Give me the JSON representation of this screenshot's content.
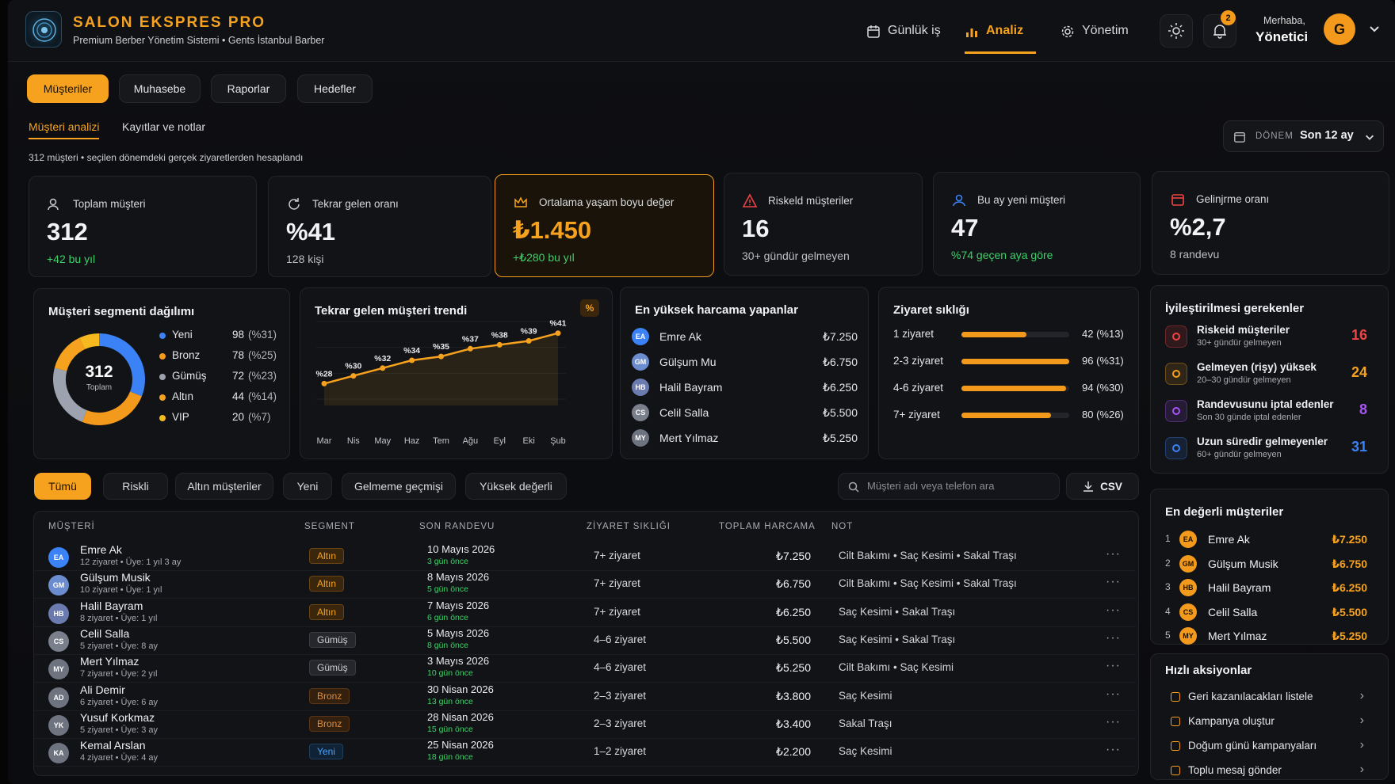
{
  "app": {
    "brand": "SALON EKSPRES PRO",
    "subtitle": "Premium Berber Yönetim Sistemi • Gents İstanbul Barber",
    "nav": [
      "Günlük iş",
      "Analiz",
      "Yönetim"
    ],
    "notifications": "2",
    "greeting": "Merhaba,",
    "user": "Yönetici",
    "avatar": "G"
  },
  "tabs": [
    "Müşteriler",
    "Muhasebe",
    "Raporlar",
    "Hedefler"
  ],
  "subtabs": [
    "Müşteri analizi",
    "Kayıtlar ve notlar"
  ],
  "period": {
    "label": "DÖNEM",
    "value": "Son 12 ay"
  },
  "info": "312 müşteri • seçilen dönemdeki gerçek ziyaretlerden hesaplandı",
  "kpis": [
    {
      "label": "Toplam müşteri",
      "value": "312",
      "note": "+42 bu yıl"
    },
    {
      "label": "Tekrar gelen oranı",
      "value": "%41",
      "note": "128 kişi"
    },
    {
      "label": "Ortalama yaşam boyu değer",
      "value": "₺1.450",
      "note": "+₺280 bu yıl"
    },
    {
      "label": "Riskeld müşteriler",
      "value": "16",
      "note": "30+ gündür gelmeyen"
    },
    {
      "label": "Bu ay yeni müşteri",
      "value": "47",
      "note": "%74 geçen aya göre"
    },
    {
      "label": "Gelinjrme oranı",
      "value": "%2,7",
      "note": "8 randevu"
    }
  ],
  "segment": {
    "title": "Müşteri segmenti dağılımı",
    "center_value": "312",
    "center_label": "Toplam",
    "items": [
      {
        "name": "Yeni",
        "count": "98",
        "pct": "(%31)",
        "color": "#3b82f6",
        "share": 31
      },
      {
        "name": "Bronz",
        "count": "78",
        "pct": "(%25)",
        "color": "#f39a1d",
        "share": 25
      },
      {
        "name": "Gümüş",
        "count": "72",
        "pct": "(%23)",
        "color": "#9ca3af",
        "share": 23
      },
      {
        "name": "Altın",
        "count": "44",
        "pct": "(%14)",
        "color": "#f6a21e",
        "share": 14
      },
      {
        "name": "VIP",
        "count": "20",
        "pct": "(%7)",
        "color": "#f6b91e",
        "share": 7
      }
    ]
  },
  "chart_data": {
    "type": "line",
    "title": "Tekrar gelen müşteri trendi",
    "unit_badge": "%",
    "categories": [
      "Mar",
      "Nis",
      "May",
      "Haz",
      "Tem",
      "Ağu",
      "Eyl",
      "Eki",
      "Şub"
    ],
    "values": [
      28,
      30,
      32,
      34,
      35,
      37,
      38,
      39,
      41
    ],
    "labels": [
      "%28",
      "%30",
      "%32",
      "%34",
      "%35",
      "%37",
      "%38",
      "%39",
      "%41"
    ],
    "ylim": [
      24,
      44
    ]
  },
  "top_spenders": {
    "title": "En yüksek harcama yapanlar",
    "items": [
      {
        "initials": "EA",
        "name": "Emre Ak",
        "amount": "₺7.250"
      },
      {
        "initials": "GM",
        "name": "Gülşum Mu",
        "amount": "₺6.750"
      },
      {
        "initials": "HB",
        "name": "Halil Bayram",
        "amount": "₺6.250"
      },
      {
        "initials": "CS",
        "name": "Celil Salla",
        "amount": "₺5.500"
      },
      {
        "initials": "MY",
        "name": "Mert Yılmaz",
        "amount": "₺5.250"
      }
    ]
  },
  "frequency": {
    "title": "Ziyaret sıklığı",
    "items": [
      {
        "label": "1 ziyaret",
        "value": "42 (%13)",
        "level": 0.6
      },
      {
        "label": "2-3 ziyaret",
        "value": "96 (%31)",
        "level": 1.0
      },
      {
        "label": "4-6 ziyaret",
        "value": "94 (%30)",
        "level": 0.97
      },
      {
        "label": "7+ ziyaret",
        "value": "80 (%26)",
        "level": 0.83
      }
    ]
  },
  "filters": [
    "Tümü",
    "Riskli",
    "Altın müşteriler",
    "Yeni",
    "Gelmeme geçmişi",
    "Yüksek değerli"
  ],
  "search_placeholder": "Müşteri adı veya telefon ara",
  "csv": "CSV",
  "table": {
    "headers": [
      "MÜŞTERİ",
      "SEGMENT",
      "SON RANDEVU",
      "ZİYARET SIKLIĞI",
      "TOPLAM HARCAMA",
      "NOT"
    ],
    "rows": [
      {
        "initials": "EA",
        "name": "Emre Ak",
        "meta": "12 ziyaret • Üye: 1 yıl 3 ay",
        "segment": "Altın",
        "seg": "altin",
        "date": "10 Mayıs 2026",
        "ago": "3 gün önce",
        "freq": "7+ ziyaret",
        "amount": "₺7.250",
        "note": "Cilt Bakımı • Saç Kesimi • Sakal Traşı",
        "more": "···"
      },
      {
        "initials": "GM",
        "name": "Gülşum Musik",
        "meta": "10 ziyaret • Üye: 1 yıl",
        "segment": "Altın",
        "seg": "altin",
        "date": "8 Mayıs 2026",
        "ago": "5 gün önce",
        "freq": "7+ ziyaret",
        "amount": "₺6.750",
        "note": "Cilt Bakımı • Saç Kesimi • Sakal Traşı",
        "more": "···"
      },
      {
        "initials": "HB",
        "name": "Halil Bayram",
        "meta": "8 ziyaret • Üye: 1 yıl",
        "segment": "Altın",
        "seg": "altin",
        "date": "7 Mayıs 2026",
        "ago": "6 gün önce",
        "freq": "7+ ziyaret",
        "amount": "₺6.250",
        "note": "Saç Kesimi • Sakal Traşı",
        "more": "···"
      },
      {
        "initials": "CS",
        "name": "Celil Salla",
        "meta": "5 ziyaret • Üye: 8 ay",
        "segment": "Gümüş",
        "seg": "gumus",
        "date": "5 Mayıs 2026",
        "ago": "8 gün önce",
        "freq": "4–6 ziyaret",
        "amount": "₺5.500",
        "note": "Saç Kesimi • Sakal Traşı",
        "more": "···"
      },
      {
        "initials": "MY",
        "name": "Mert Yılmaz",
        "meta": "7 ziyaret • Üye: 2 yıl",
        "segment": "Gümüş",
        "seg": "gumus",
        "date": "3 Mayıs 2026",
        "ago": "10 gün önce",
        "freq": "4–6 ziyaret",
        "amount": "₺5.250",
        "note": "Cilt Bakımı • Saç Kesimi",
        "more": "···"
      },
      {
        "initials": "AD",
        "name": "Ali Demir",
        "meta": "6 ziyaret • Üye: 6 ay",
        "segment": "Bronz",
        "seg": "bronz",
        "date": "30 Nisan 2026",
        "ago": "13 gün önce",
        "freq": "2–3 ziyaret",
        "amount": "₺3.800",
        "note": "Saç Kesimi",
        "more": "···"
      },
      {
        "initials": "YK",
        "name": "Yusuf Korkmaz",
        "meta": "5 ziyaret • Üye: 3 ay",
        "segment": "Bronz",
        "seg": "bronz",
        "date": "28 Nisan 2026",
        "ago": "15 gün önce",
        "freq": "2–3 ziyaret",
        "amount": "₺3.400",
        "note": "Sakal Traşı",
        "more": "···"
      },
      {
        "initials": "KA",
        "name": "Kemal Arslan",
        "meta": "4 ziyaret • Üye: 4 ay",
        "segment": "Yeni",
        "seg": "yeni",
        "date": "25 Nisan 2026",
        "ago": "18 gün önce",
        "freq": "1–2 ziyaret",
        "amount": "₺2.200",
        "note": "Saç Kesimi",
        "more": "···"
      }
    ]
  },
  "improve": {
    "title": "İyileştirilmesi gerekenler",
    "items": [
      {
        "title": "Riskeid müşteriler",
        "sub": "30+ gündür gelmeyen",
        "count": "16",
        "color": "#ef4444"
      },
      {
        "title": "Gelmeyen (rişy) yüksek",
        "sub": "20–30 gündür gelmeyen",
        "count": "24",
        "color": "#f6a21e"
      },
      {
        "title": "Randevusunu iptal edenler",
        "sub": "Son 30 günde iptal edenler",
        "count": "8",
        "color": "#a855f7"
      },
      {
        "title": "Uzun süredir gelmeyenler",
        "sub": "60+ gündür gelmeyen",
        "count": "31",
        "color": "#3b82f6"
      }
    ]
  },
  "valuable": {
    "title": "En değerli müşteriler",
    "items": [
      {
        "rank": "1",
        "initials": "EA",
        "name": "Emre Ak",
        "amount": "₺7.250"
      },
      {
        "rank": "2",
        "initials": "GM",
        "name": "Gülşum Musik",
        "amount": "₺6.750"
      },
      {
        "rank": "3",
        "initials": "HB",
        "name": "Halil Bayram",
        "amount": "₺6.250"
      },
      {
        "rank": "4",
        "initials": "CS",
        "name": "Celil Salla",
        "amount": "₺5.500"
      },
      {
        "rank": "5",
        "initials": "MY",
        "name": "Mert Yılmaz",
        "amount": "₺5.250"
      }
    ]
  },
  "quick": {
    "title": "Hızlı aksiyonlar",
    "items": [
      "Geri kazanılacakları listele",
      "Kampanya oluştur",
      "Doğum günü kampanyaları",
      "Toplu mesaj gönder"
    ]
  }
}
